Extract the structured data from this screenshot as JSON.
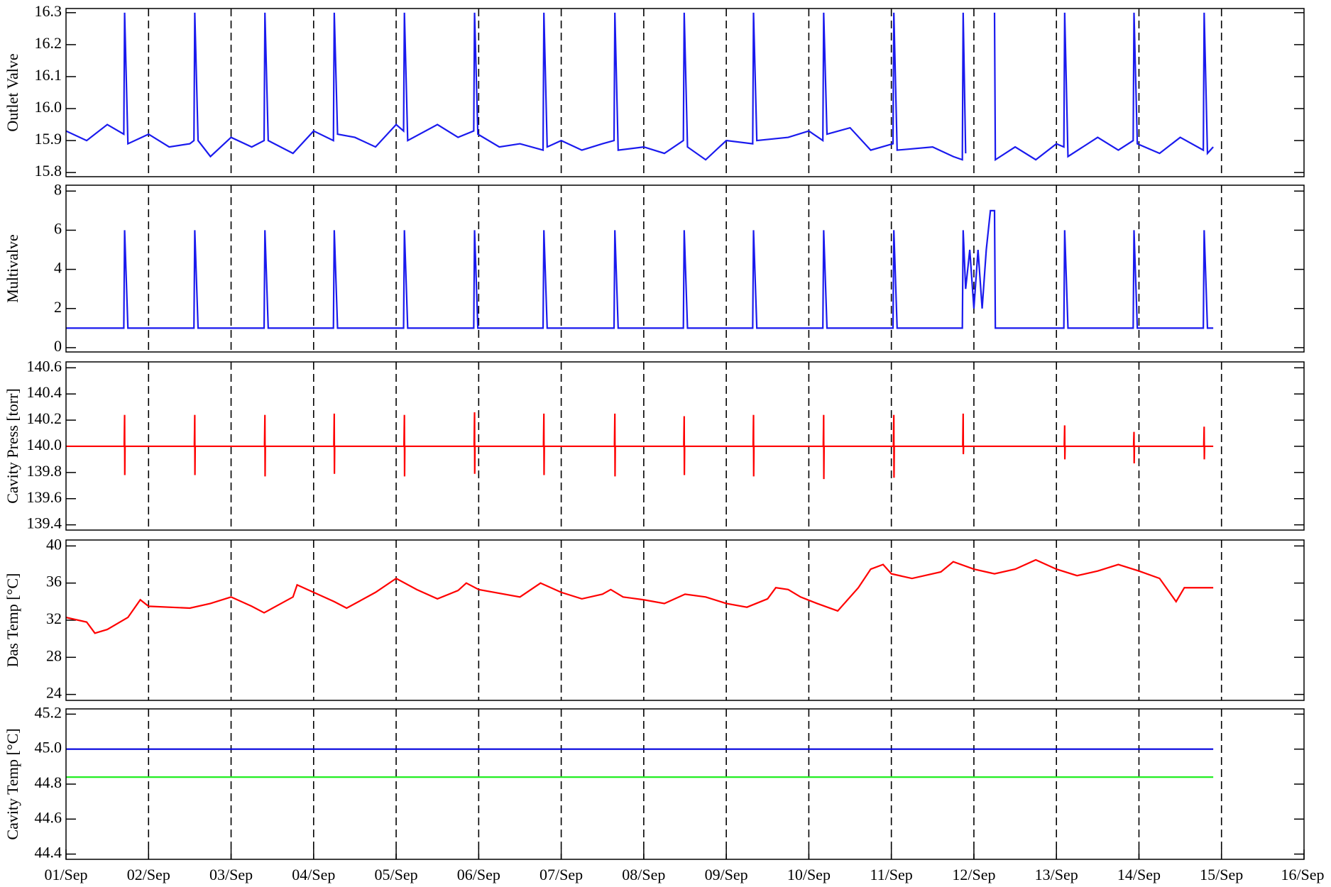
{
  "chart_data": [
    {
      "type": "line",
      "ylabel": "Outlet Valve",
      "ylim": [
        15.787,
        16.313
      ],
      "yticks": [
        15.8,
        15.9,
        {
          "value": 16,
          "label": "16.0"
        },
        16.1,
        16.2,
        16.3
      ],
      "x": [
        1,
        1.25,
        1.5,
        1.7,
        1.71,
        1.75,
        2,
        2.25,
        2.5,
        2.55,
        2.56,
        2.6,
        2.75,
        3,
        3.25,
        3.4,
        3.41,
        3.45,
        3.75,
        4,
        4.24,
        4.25,
        4.29,
        4.5,
        4.75,
        5,
        5.09,
        5.1,
        5.14,
        5.5,
        5.75,
        5.94,
        5.95,
        5.99,
        6.25,
        6.5,
        6.78,
        6.79,
        6.83,
        7,
        7.25,
        7.5,
        7.64,
        7.65,
        7.69,
        8,
        8.25,
        8.48,
        8.49,
        8.53,
        8.75,
        9,
        9.32,
        9.33,
        9.37,
        9.75,
        10,
        10.17,
        10.18,
        10.22,
        10.5,
        10.75,
        11.02,
        11.03,
        11.07,
        11.5,
        11.75,
        11.86,
        11.87,
        11.9,
        11.95,
        12,
        12.05,
        12.1,
        12.15,
        12.2,
        12.25,
        12.26,
        12.5,
        12.75,
        13,
        13.09,
        13.1,
        13.14,
        13.5,
        13.75,
        13.93,
        13.94,
        13.98,
        14.25,
        14.5,
        14.78,
        14.79,
        14.83,
        14.9
      ],
      "series": [
        {
          "color": "#1a1aee",
          "values": [
            15.93,
            15.9,
            15.95,
            15.92,
            16.3,
            15.89,
            15.92,
            15.88,
            15.89,
            15.9,
            16.3,
            15.9,
            15.85,
            15.91,
            15.88,
            15.9,
            16.3,
            15.9,
            15.86,
            15.93,
            15.9,
            16.3,
            15.92,
            15.91,
            15.88,
            15.95,
            15.93,
            16.3,
            15.9,
            15.95,
            15.91,
            15.93,
            16.3,
            15.92,
            15.88,
            15.89,
            15.87,
            16.3,
            15.88,
            15.9,
            15.87,
            15.89,
            15.9,
            16.3,
            15.87,
            15.88,
            15.86,
            15.9,
            16.3,
            15.88,
            15.84,
            15.9,
            15.89,
            16.3,
            15.9,
            15.91,
            15.93,
            15.9,
            16.3,
            15.92,
            15.94,
            15.87,
            15.89,
            16.3,
            15.87,
            15.88,
            15.85,
            15.84,
            16.3,
            15.86,
            null,
            null,
            null,
            null,
            null,
            null,
            16.3,
            15.84,
            15.88,
            15.84,
            15.89,
            15.88,
            16.3,
            15.85,
            15.91,
            15.87,
            15.9,
            16.3,
            15.89,
            15.86,
            15.91,
            15.87,
            16.3,
            15.86,
            15.88
          ]
        }
      ]
    },
    {
      "type": "line",
      "ylabel": "Multivalve",
      "ylim": [
        -0.22,
        8.3
      ],
      "yticks": [
        0,
        2,
        4,
        6,
        8
      ],
      "x": [
        1,
        1.25,
        1.5,
        1.7,
        1.71,
        1.75,
        2,
        2.25,
        2.5,
        2.55,
        2.56,
        2.6,
        2.75,
        3,
        3.25,
        3.4,
        3.41,
        3.45,
        3.75,
        4,
        4.24,
        4.25,
        4.29,
        4.5,
        4.75,
        5,
        5.09,
        5.1,
        5.14,
        5.5,
        5.75,
        5.94,
        5.95,
        5.99,
        6.25,
        6.5,
        6.78,
        6.79,
        6.83,
        7,
        7.25,
        7.5,
        7.64,
        7.65,
        7.69,
        8,
        8.25,
        8.48,
        8.49,
        8.53,
        8.75,
        9,
        9.32,
        9.33,
        9.37,
        9.75,
        10,
        10.17,
        10.18,
        10.22,
        10.5,
        10.75,
        11.02,
        11.03,
        11.07,
        11.5,
        11.75,
        11.86,
        11.87,
        11.9,
        11.95,
        12,
        12.05,
        12.1,
        12.15,
        12.2,
        12.25,
        12.26,
        12.5,
        12.75,
        13,
        13.09,
        13.1,
        13.14,
        13.5,
        13.75,
        13.93,
        13.94,
        13.98,
        14.25,
        14.5,
        14.78,
        14.79,
        14.83,
        14.9
      ],
      "series": [
        {
          "color": "#1a1aee",
          "values": [
            1,
            1,
            1,
            1,
            6,
            1,
            1,
            1,
            1,
            1,
            6,
            1,
            1,
            1,
            1,
            1,
            6,
            1,
            1,
            1,
            1,
            6,
            1,
            1,
            1,
            1,
            1,
            6,
            1,
            1,
            1,
            1,
            6,
            1,
            1,
            1,
            1,
            6,
            1,
            1,
            1,
            1,
            1,
            6,
            1,
            1,
            1,
            1,
            6,
            1,
            1,
            1,
            1,
            6,
            1,
            1,
            1,
            1,
            6,
            1,
            1,
            1,
            1,
            6,
            1,
            1,
            1,
            1,
            6,
            3,
            5,
            2,
            5,
            2,
            5,
            7,
            7,
            1,
            1,
            1,
            1,
            1,
            6,
            1,
            1,
            1,
            1,
            6,
            1,
            1,
            1,
            1,
            6,
            1,
            1
          ]
        }
      ]
    },
    {
      "type": "line",
      "ylabel": "Cavity Press [torr]",
      "ylim": [
        139.36,
        140.645
      ],
      "yticks": [
        139.4,
        139.6,
        139.8,
        {
          "value": 140,
          "label": "140.0"
        },
        140.2,
        140.4,
        140.6
      ],
      "x": [
        1,
        1.705,
        1.71,
        1.712,
        1.715,
        2.555,
        2.56,
        2.562,
        2.565,
        3.405,
        3.41,
        3.412,
        3.415,
        4.245,
        4.25,
        4.252,
        4.255,
        5.095,
        5.1,
        5.102,
        5.105,
        5.945,
        5.95,
        5.952,
        5.955,
        6.785,
        6.79,
        6.792,
        6.795,
        7.645,
        7.65,
        7.652,
        7.655,
        8.485,
        8.49,
        8.492,
        8.495,
        9.325,
        9.33,
        9.332,
        9.335,
        10.175,
        10.18,
        10.182,
        10.185,
        11.025,
        11.03,
        11.032,
        11.035,
        11.865,
        11.87,
        11.872,
        11.875,
        13.095,
        13.1,
        13.102,
        13.105,
        13.935,
        13.94,
        13.942,
        13.945,
        14.785,
        14.79,
        14.792,
        14.795,
        14.9
      ],
      "series": [
        {
          "color": "#ff0000",
          "values": [
            140,
            140,
            140.24,
            139.78,
            140,
            140,
            140.24,
            139.78,
            140,
            140,
            140.24,
            139.77,
            140,
            140,
            140.25,
            139.79,
            140,
            140,
            140.24,
            139.77,
            140,
            140,
            140.26,
            139.79,
            140,
            140,
            140.25,
            139.78,
            140,
            140,
            140.25,
            139.77,
            140,
            140,
            140.23,
            139.78,
            140,
            140,
            140.24,
            139.77,
            140,
            140,
            140.24,
            139.75,
            140,
            140,
            140.24,
            139.76,
            140,
            140,
            140.25,
            139.94,
            140,
            140,
            140.16,
            139.9,
            140,
            140,
            140.11,
            139.87,
            140,
            140,
            140.15,
            139.9,
            140,
            140
          ]
        }
      ]
    },
    {
      "type": "line",
      "ylabel": "Das Temp [°C]",
      "ylim": [
        23.36,
        40.64
      ],
      "yticks": [
        24,
        28,
        32,
        36,
        40
      ],
      "x": [
        1,
        1.25,
        1.35,
        1.5,
        1.75,
        1.9,
        2,
        2.5,
        2.75,
        3,
        3.25,
        3.4,
        3.75,
        3.8,
        4,
        4.25,
        4.4,
        4.75,
        5,
        5.25,
        5.5,
        5.75,
        5.85,
        6,
        6.5,
        6.75,
        7,
        7.25,
        7.5,
        7.6,
        7.75,
        8,
        8.25,
        8.5,
        8.75,
        9,
        9.25,
        9.5,
        9.6,
        9.75,
        9.9,
        10.1,
        10.35,
        10.6,
        10.75,
        10.9,
        11,
        11.25,
        11.6,
        11.75,
        12,
        12.25,
        12.5,
        12.75,
        13,
        13.25,
        13.5,
        13.75,
        14,
        14.25,
        14.45,
        14.55,
        14.75,
        14.9
      ],
      "series": [
        {
          "color": "#ff0000",
          "values": [
            32.3,
            31.8,
            30.6,
            31,
            32.3,
            34.2,
            33.5,
            33.3,
            33.8,
            34.5,
            33.5,
            32.8,
            34.5,
            35.8,
            35,
            34,
            33.3,
            35,
            36.5,
            35.3,
            34.3,
            35.2,
            36,
            35.3,
            34.5,
            36,
            35,
            34.3,
            34.8,
            35.3,
            34.5,
            34.2,
            33.8,
            34.8,
            34.5,
            33.8,
            33.4,
            34.3,
            35.5,
            35.3,
            34.5,
            33.8,
            33,
            35.5,
            37.5,
            38,
            37,
            36.5,
            37.2,
            38.3,
            37.5,
            37,
            37.5,
            38.5,
            37.5,
            36.8,
            37.3,
            38,
            37.3,
            36.5,
            34,
            35.5,
            35.5,
            35.5
          ]
        }
      ]
    },
    {
      "type": "line",
      "ylabel": "Cavity Temp [°C]",
      "ylim": [
        44.37,
        45.23
      ],
      "yticks": [
        44.4,
        44.6,
        44.8,
        {
          "value": 45,
          "label": "45.0"
        },
        45.2
      ],
      "xlim": [
        1,
        16
      ],
      "xticks": [
        {
          "value": 1,
          "label": "01/Sep"
        },
        {
          "value": 2,
          "label": "02/Sep"
        },
        {
          "value": 3,
          "label": "03/Sep"
        },
        {
          "value": 4,
          "label": "04/Sep"
        },
        {
          "value": 5,
          "label": "05/Sep"
        },
        {
          "value": 6,
          "label": "06/Sep"
        },
        {
          "value": 7,
          "label": "07/Sep"
        },
        {
          "value": 8,
          "label": "08/Sep"
        },
        {
          "value": 9,
          "label": "09/Sep"
        },
        {
          "value": 10,
          "label": "10/Sep"
        },
        {
          "value": 11,
          "label": "11/Sep"
        },
        {
          "value": 12,
          "label": "12/Sep"
        },
        {
          "value": 13,
          "label": "13/Sep"
        },
        {
          "value": 14,
          "label": "14/Sep"
        },
        {
          "value": 15,
          "label": "15/Sep"
        },
        {
          "value": 16,
          "label": "16/Sep"
        }
      ],
      "x": [
        1,
        14.9
      ],
      "series": [
        {
          "color": "#0000dd",
          "values": [
            45,
            45
          ]
        },
        {
          "color": "#22ee22",
          "values": [
            44.84,
            44.84
          ]
        }
      ]
    }
  ]
}
